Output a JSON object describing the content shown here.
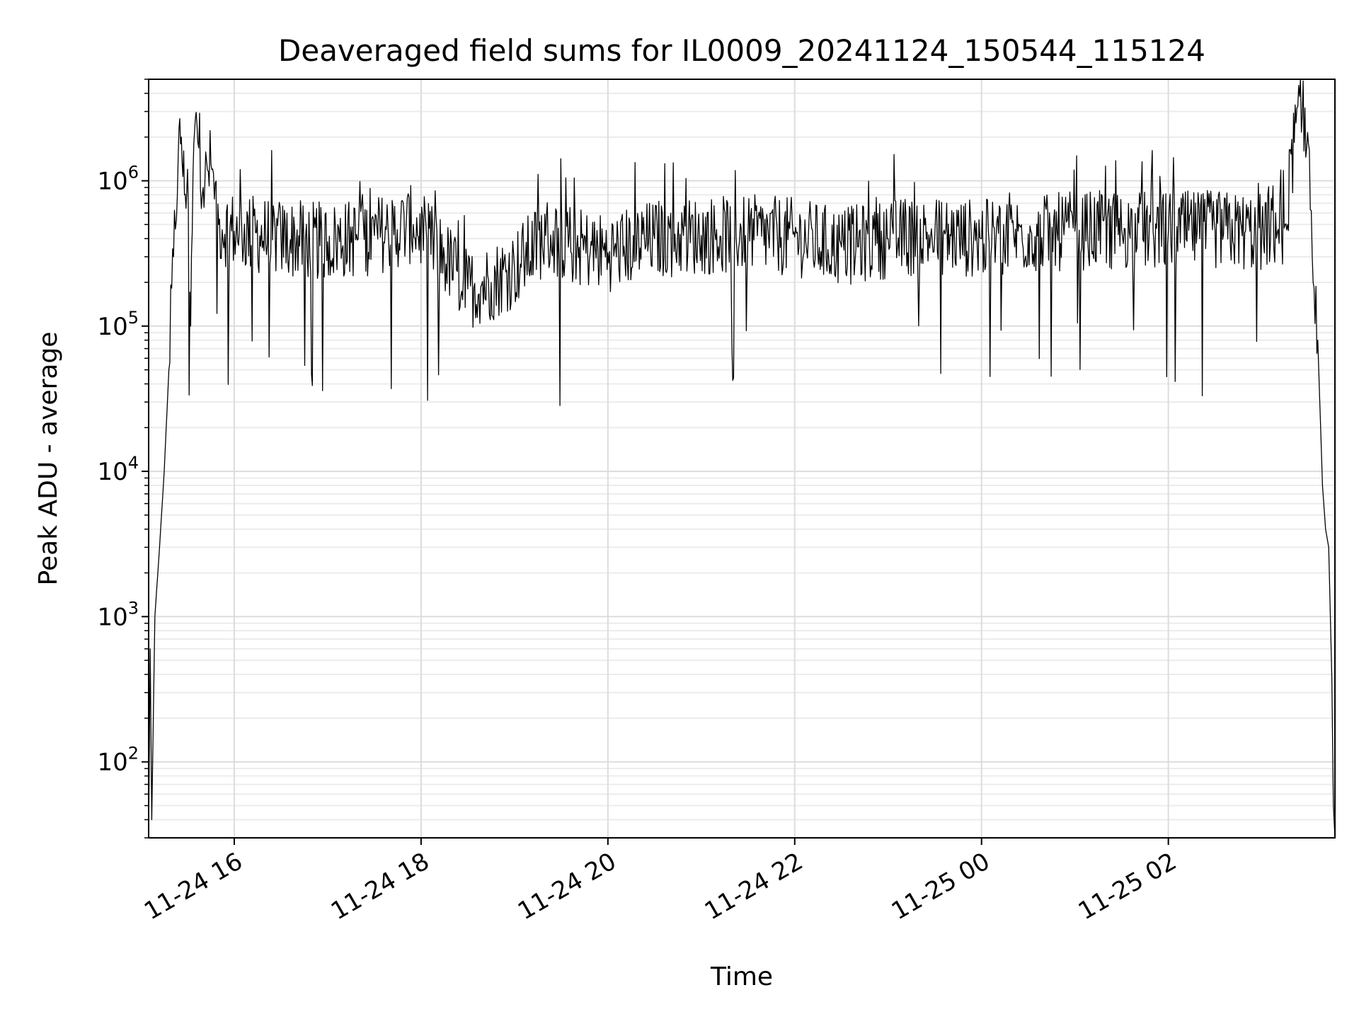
{
  "chart_data": {
    "type": "line",
    "title": "Deaveraged field sums for IL0009_20241124_150544_115124",
    "xlabel": "Time",
    "ylabel": "Peak ADU - average",
    "yscale": "log",
    "grid": true,
    "grid_minor": true,
    "line_color": "#000000",
    "xlim": [
      "2024-11-24T15:05",
      "2024-11-25T03:47"
    ],
    "ylim": [
      30,
      5000000
    ],
    "x_ticks": [
      {
        "value": "2024-11-24T16:00",
        "label": "11-24 16"
      },
      {
        "value": "2024-11-24T18:00",
        "label": "11-24 18"
      },
      {
        "value": "2024-11-24T20:00",
        "label": "11-24 20"
      },
      {
        "value": "2024-11-24T22:00",
        "label": "11-24 22"
      },
      {
        "value": "2024-11-25T00:00",
        "label": "11-25 00"
      },
      {
        "value": "2024-11-25T02:00",
        "label": "11-25 02"
      }
    ],
    "y_ticks": [
      {
        "value": 100,
        "base": "10",
        "exp": "2"
      },
      {
        "value": 1000,
        "base": "10",
        "exp": "3"
      },
      {
        "value": 10000,
        "base": "10",
        "exp": "4"
      },
      {
        "value": 100000,
        "base": "10",
        "exp": "5"
      },
      {
        "value": 1000000,
        "base": "10",
        "exp": "6"
      }
    ],
    "series": [
      {
        "points": [
          [
            "2024-11-24T15:05",
            30
          ],
          [
            "2024-11-24T15:06",
            600
          ],
          [
            "2024-11-24T15:07",
            40
          ],
          [
            "2024-11-24T15:09",
            1000
          ],
          [
            "2024-11-24T15:12",
            3000
          ],
          [
            "2024-11-24T15:15",
            10000
          ],
          [
            "2024-11-24T15:18",
            50000
          ],
          [
            "2024-11-24T15:21",
            300000
          ],
          [
            "2024-11-24T15:24",
            1500000
          ],
          [
            "2024-11-24T15:26",
            2000000
          ],
          [
            "2024-11-24T15:28",
            800000
          ],
          [
            "2024-11-24T15:30",
            1200000
          ],
          [
            "2024-11-24T15:32",
            100000
          ],
          [
            "2024-11-24T15:34",
            1800000
          ],
          [
            "2024-11-24T15:36",
            2500000
          ],
          [
            "2024-11-24T15:40",
            900000
          ],
          [
            "2024-11-24T15:45",
            1300000
          ],
          [
            "2024-11-24T15:50",
            500000
          ],
          [
            "2024-11-24T16:00",
            450000
          ],
          [
            "2024-11-24T16:30",
            400000
          ],
          [
            "2024-11-24T17:00",
            380000
          ],
          [
            "2024-11-24T17:30",
            420000
          ],
          [
            "2024-11-24T17:55",
            500000
          ],
          [
            "2024-11-24T18:15",
            300000
          ],
          [
            "2024-11-24T18:30",
            180000
          ],
          [
            "2024-11-24T18:45",
            200000
          ],
          [
            "2024-11-24T19:00",
            250000
          ],
          [
            "2024-11-24T19:20",
            420000
          ],
          [
            "2024-11-24T19:40",
            350000
          ],
          [
            "2024-11-24T20:00",
            320000
          ],
          [
            "2024-11-24T20:30",
            400000
          ],
          [
            "2024-11-24T21:00",
            420000
          ],
          [
            "2024-11-24T21:30",
            430000
          ],
          [
            "2024-11-24T22:00",
            410000
          ],
          [
            "2024-11-24T22:30",
            350000
          ],
          [
            "2024-11-24T23:00",
            400000
          ],
          [
            "2024-11-24T23:30",
            420000
          ],
          [
            "2024-11-25T00:00",
            400000
          ],
          [
            "2024-11-25T00:30",
            430000
          ],
          [
            "2024-11-25T01:00",
            450000
          ],
          [
            "2024-11-25T01:30",
            460000
          ],
          [
            "2024-11-25T02:00",
            450000
          ],
          [
            "2024-11-25T02:30",
            460000
          ],
          [
            "2024-11-25T03:00",
            440000
          ],
          [
            "2024-11-25T03:15",
            500000
          ],
          [
            "2024-11-25T03:22",
            2500000
          ],
          [
            "2024-11-25T03:26",
            2800000
          ],
          [
            "2024-11-25T03:30",
            1800000
          ],
          [
            "2024-11-25T03:33",
            200000
          ],
          [
            "2024-11-25T03:36",
            80000
          ],
          [
            "2024-11-25T03:39",
            8000
          ],
          [
            "2024-11-25T03:41",
            4000
          ],
          [
            "2024-11-25T03:43",
            3000
          ],
          [
            "2024-11-25T03:45",
            380
          ],
          [
            "2024-11-25T03:46",
            50
          ],
          [
            "2024-11-25T03:47",
            30
          ]
        ]
      }
    ]
  }
}
